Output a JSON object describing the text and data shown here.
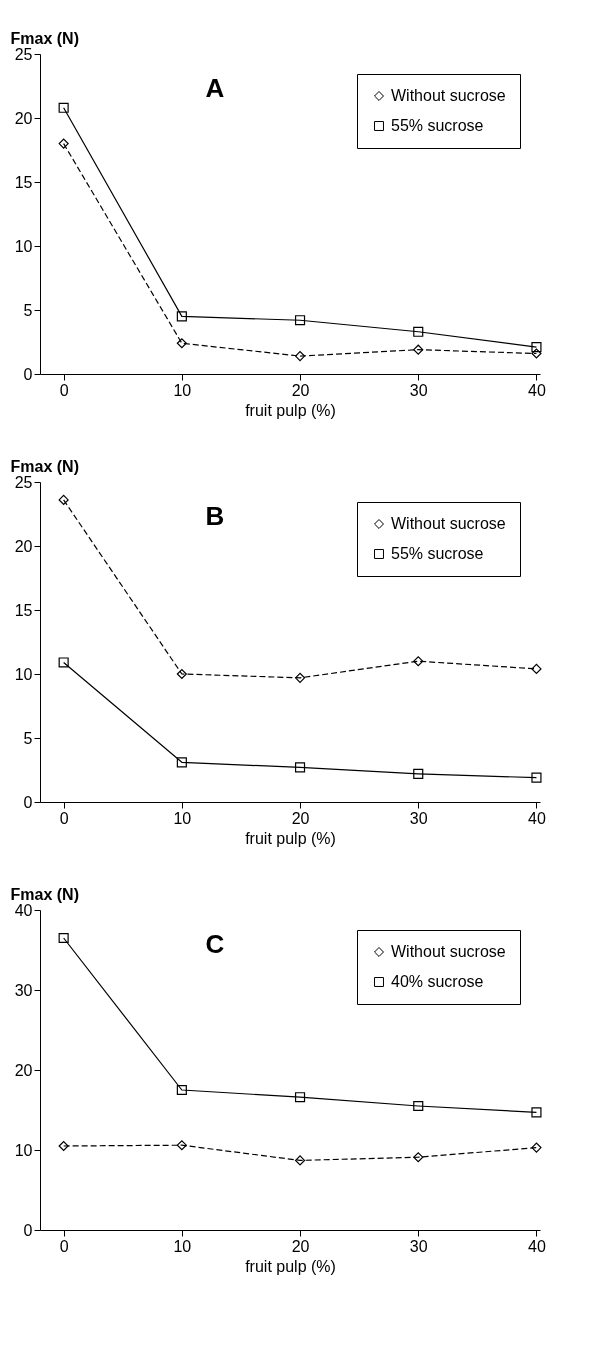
{
  "chart_data": [
    {
      "type": "line",
      "annotations": [
        "A"
      ],
      "xlabel": "fruit pulp (%)",
      "ylabel": "Fmax (N)",
      "x": [
        0,
        10,
        20,
        30,
        40
      ],
      "xlim": [
        -2,
        40.3
      ],
      "xticks": [
        0,
        10,
        20,
        30,
        40
      ],
      "ylim": [
        0,
        25
      ],
      "yticks": [
        0,
        5,
        10,
        15,
        20,
        25
      ],
      "legend": "top right",
      "grid": false,
      "series": [
        {
          "name": "Without sucrose",
          "color": "#000000",
          "marker": "diamond",
          "line_style": "dashed",
          "values": [
            18.0,
            2.4,
            1.4,
            1.9,
            1.6
          ]
        },
        {
          "name": "55% sucrose",
          "color": "#000000",
          "marker": "square",
          "line_style": "solid",
          "values": [
            20.8,
            4.5,
            4.2,
            3.3,
            2.1
          ]
        }
      ]
    },
    {
      "type": "line",
      "annotations": [
        "B"
      ],
      "xlabel": "fruit pulp (%)",
      "ylabel": "Fmax (N)",
      "x": [
        0,
        10,
        20,
        30,
        40
      ],
      "xlim": [
        -2,
        40.3
      ],
      "xticks": [
        0,
        10,
        20,
        30,
        40
      ],
      "ylim": [
        0,
        25
      ],
      "yticks": [
        0,
        5,
        10,
        15,
        20,
        25
      ],
      "legend": "top right",
      "grid": false,
      "series": [
        {
          "name": "Without sucrose",
          "color": "#000000",
          "marker": "diamond",
          "line_style": "dashed",
          "values": [
            23.6,
            10.0,
            9.7,
            11.0,
            10.4
          ]
        },
        {
          "name": "55% sucrose",
          "color": "#000000",
          "marker": "square",
          "line_style": "solid",
          "values": [
            10.9,
            3.1,
            2.7,
            2.2,
            1.9
          ]
        }
      ]
    },
    {
      "type": "line",
      "annotations": [
        "C"
      ],
      "xlabel": "fruit pulp (%)",
      "ylabel": "Fmax (N)",
      "x": [
        0,
        10,
        20,
        30,
        40
      ],
      "xlim": [
        -2,
        40.3
      ],
      "xticks": [
        0,
        10,
        20,
        30,
        40
      ],
      "ylim": [
        0,
        40
      ],
      "yticks": [
        0,
        10,
        20,
        30,
        40
      ],
      "legend": "top right",
      "grid": false,
      "series": [
        {
          "name": "Without sucrose",
          "color": "#000000",
          "marker": "diamond",
          "line_style": "dashed",
          "values": [
            10.5,
            10.6,
            8.7,
            9.1,
            10.3
          ]
        },
        {
          "name": "40% sucrose",
          "color": "#000000",
          "marker": "square",
          "line_style": "solid",
          "values": [
            36.5,
            17.5,
            16.6,
            15.5,
            14.7
          ]
        }
      ]
    }
  ]
}
